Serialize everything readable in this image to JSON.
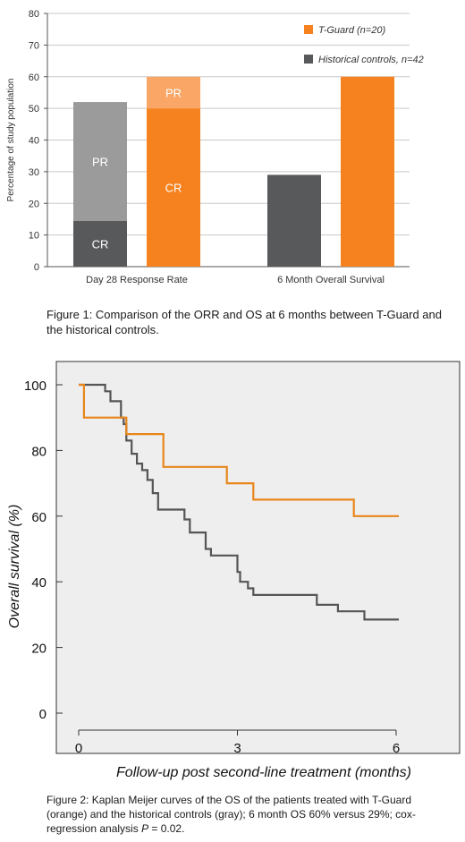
{
  "figure1": {
    "caption": "Figure 1: Comparison of the ORR and OS at 6 months between T-Guard and the historical controls.",
    "chart_data": {
      "type": "bar",
      "ylabel": "Percentage of study population",
      "ylim": [
        0,
        80
      ],
      "yticks": [
        0,
        10,
        20,
        30,
        40,
        50,
        60,
        70,
        80
      ],
      "grid": true,
      "legend_position": "top-right",
      "categories": [
        "Day 28 Response Rate",
        "6 Month Overall Survival"
      ],
      "series": [
        {
          "name": "T-Guard (n=20)",
          "color": "#f5821f",
          "light_color": "#f9a666",
          "values": [
            60,
            60
          ],
          "segments": [
            [
              {
                "label": "CR",
                "value": 50
              },
              {
                "label": "PR",
                "value": 10
              }
            ],
            [
              {
                "label": "",
                "value": 60
              }
            ]
          ]
        },
        {
          "name": "Historical controls, n=42",
          "color": "#58595b",
          "light_color": "#9b9b9b",
          "values": [
            52,
            29
          ],
          "segments": [
            [
              {
                "label": "CR",
                "value": 14.5
              },
              {
                "label": "PR",
                "value": 37.5
              }
            ],
            [
              {
                "label": "",
                "value": 29
              }
            ]
          ]
        }
      ]
    }
  },
  "figure2": {
    "caption_prefix": "Figure 2: Kaplan Meijer curves of the OS of the patients treated with T-Guard (orange) and the historical controls (gray); 6 month OS 60% versus 29%; cox-regression analysis ",
    "caption_p": "P",
    "caption_suffix": " = 0.02.",
    "chart_data": {
      "type": "line",
      "xlabel": "Follow-up post second-line treatment (months)",
      "ylabel": "Overall survival (%)",
      "xlim": [
        0,
        6
      ],
      "ylim": [
        0,
        100
      ],
      "xticks": [
        0,
        3,
        6
      ],
      "yticks": [
        0,
        20,
        40,
        60,
        80,
        100
      ],
      "series": [
        {
          "name": "T-Guard",
          "color": "#e8861a",
          "x": [
            0,
            0.1,
            0.1,
            0.9,
            0.9,
            1.6,
            1.6,
            2.8,
            2.8,
            3.3,
            3.3,
            5.2,
            5.2,
            6.05
          ],
          "y": [
            100,
            100,
            90,
            90,
            85,
            85,
            75,
            75,
            70,
            70,
            65,
            65,
            60,
            60
          ]
        },
        {
          "name": "Historical controls",
          "color": "#555555",
          "x": [
            0,
            0.5,
            0.5,
            0.6,
            0.6,
            0.8,
            0.8,
            0.85,
            0.85,
            0.9,
            0.9,
            1.0,
            1.0,
            1.1,
            1.1,
            1.2,
            1.2,
            1.3,
            1.3,
            1.4,
            1.4,
            1.5,
            1.5,
            2.0,
            2.0,
            2.1,
            2.1,
            2.4,
            2.4,
            2.5,
            2.5,
            3.0,
            3.0,
            3.05,
            3.05,
            3.2,
            3.2,
            3.3,
            3.3,
            4.5,
            4.5,
            4.9,
            4.9,
            5.4,
            5.4,
            6.05
          ],
          "y": [
            100,
            100,
            98,
            98,
            95,
            95,
            90,
            90,
            88,
            88,
            83,
            83,
            79,
            79,
            76,
            76,
            74,
            74,
            71,
            71,
            67,
            67,
            62,
            62,
            59,
            59,
            55,
            55,
            50,
            50,
            48,
            48,
            43,
            43,
            40,
            40,
            38,
            38,
            36,
            36,
            33,
            33,
            31,
            31,
            28.5,
            28.5
          ]
        }
      ]
    }
  }
}
